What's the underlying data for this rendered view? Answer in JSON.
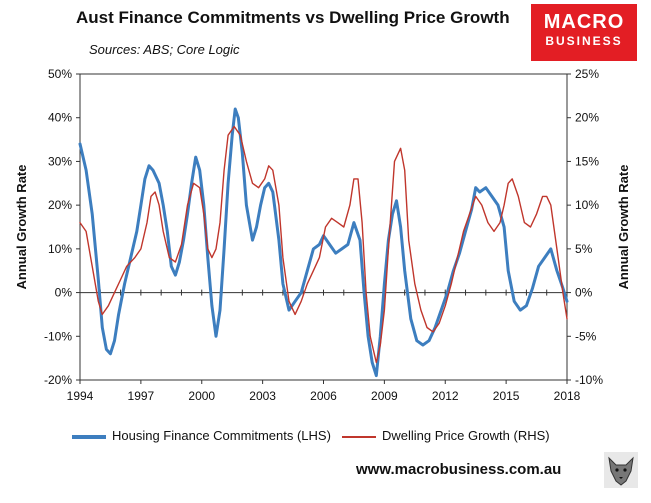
{
  "brand": {
    "line1": "MACRO",
    "line2": "BUSINESS"
  },
  "footer": {
    "url": "www.macrobusiness.com.au"
  },
  "chart_data": {
    "type": "line",
    "title": "Aust Finance Commitments vs Dwelling Price Growth",
    "subtitle": "Sources: ABS; Core Logic",
    "xlabel": "",
    "ylabel_left": "Annual Growth Rate",
    "ylabel_right": "Annual Growth Rate",
    "xlim": [
      1994,
      2018
    ],
    "ylim_left": [
      -20,
      50
    ],
    "ylim_right": [
      -10,
      25
    ],
    "x_ticks": [
      1994,
      1997,
      2000,
      2003,
      2006,
      2009,
      2012,
      2015,
      2018
    ],
    "y_ticks_left": [
      {
        "v": -20,
        "label": "-20%"
      },
      {
        "v": -10,
        "label": "-10%"
      },
      {
        "v": 0,
        "label": "0%"
      },
      {
        "v": 10,
        "label": "10%"
      },
      {
        "v": 20,
        "label": "20%"
      },
      {
        "v": 30,
        "label": "30%"
      },
      {
        "v": 40,
        "label": "40%"
      },
      {
        "v": 50,
        "label": "50%"
      }
    ],
    "y_ticks_right": [
      {
        "v": -10,
        "label": "-10%"
      },
      {
        "v": -5,
        "label": "-5%"
      },
      {
        "v": 0,
        "label": "0%"
      },
      {
        "v": 5,
        "label": "5%"
      },
      {
        "v": 10,
        "label": "10%"
      },
      {
        "v": 15,
        "label": "15%"
      },
      {
        "v": 20,
        "label": "20%"
      },
      {
        "v": 25,
        "label": "25%"
      }
    ],
    "grid": false,
    "legend_position": "bottom",
    "series": [
      {
        "name": "Housing Finance Commitments (LHS)",
        "axis": "left",
        "color": "#3d7ebf",
        "points": [
          [
            1994.0,
            34
          ],
          [
            1994.3,
            28
          ],
          [
            1994.6,
            18
          ],
          [
            1994.9,
            3
          ],
          [
            1995.1,
            -8
          ],
          [
            1995.3,
            -13
          ],
          [
            1995.5,
            -14
          ],
          [
            1995.7,
            -11
          ],
          [
            1995.9,
            -5
          ],
          [
            1996.2,
            2
          ],
          [
            1996.5,
            8
          ],
          [
            1996.8,
            14
          ],
          [
            1997.0,
            20
          ],
          [
            1997.2,
            26
          ],
          [
            1997.4,
            29
          ],
          [
            1997.6,
            28
          ],
          [
            1997.9,
            25
          ],
          [
            1998.1,
            20
          ],
          [
            1998.3,
            14
          ],
          [
            1998.5,
            6
          ],
          [
            1998.7,
            4
          ],
          [
            1998.9,
            7
          ],
          [
            1999.1,
            12
          ],
          [
            1999.3,
            18
          ],
          [
            1999.5,
            25
          ],
          [
            1999.7,
            31
          ],
          [
            1999.9,
            28
          ],
          [
            2000.1,
            20
          ],
          [
            2000.3,
            8
          ],
          [
            2000.5,
            -3
          ],
          [
            2000.7,
            -10
          ],
          [
            2000.9,
            -4
          ],
          [
            2001.1,
            10
          ],
          [
            2001.3,
            25
          ],
          [
            2001.5,
            36
          ],
          [
            2001.65,
            42
          ],
          [
            2001.8,
            40
          ],
          [
            2002.0,
            32
          ],
          [
            2002.2,
            20
          ],
          [
            2002.5,
            12
          ],
          [
            2002.7,
            15
          ],
          [
            2002.9,
            20
          ],
          [
            2003.1,
            24
          ],
          [
            2003.3,
            25
          ],
          [
            2003.5,
            23
          ],
          [
            2003.8,
            12
          ],
          [
            2004.0,
            2
          ],
          [
            2004.3,
            -4
          ],
          [
            2004.6,
            -2
          ],
          [
            2004.9,
            0
          ],
          [
            2005.2,
            5
          ],
          [
            2005.5,
            10
          ],
          [
            2005.8,
            11
          ],
          [
            2006.0,
            13
          ],
          [
            2006.3,
            11
          ],
          [
            2006.6,
            9
          ],
          [
            2006.9,
            10
          ],
          [
            2007.2,
            11
          ],
          [
            2007.5,
            16
          ],
          [
            2007.8,
            12
          ],
          [
            2008.0,
            0
          ],
          [
            2008.2,
            -10
          ],
          [
            2008.4,
            -16
          ],
          [
            2008.6,
            -19
          ],
          [
            2008.8,
            -10
          ],
          [
            2009.0,
            2
          ],
          [
            2009.2,
            12
          ],
          [
            2009.4,
            18
          ],
          [
            2009.6,
            21
          ],
          [
            2009.8,
            15
          ],
          [
            2010.0,
            5
          ],
          [
            2010.3,
            -6
          ],
          [
            2010.6,
            -11
          ],
          [
            2010.9,
            -12
          ],
          [
            2011.2,
            -11
          ],
          [
            2011.5,
            -8
          ],
          [
            2011.8,
            -4
          ],
          [
            2012.1,
            0
          ],
          [
            2012.4,
            5
          ],
          [
            2012.7,
            9
          ],
          [
            2013.0,
            14
          ],
          [
            2013.3,
            19
          ],
          [
            2013.5,
            24
          ],
          [
            2013.7,
            23
          ],
          [
            2014.0,
            24
          ],
          [
            2014.3,
            22
          ],
          [
            2014.6,
            20
          ],
          [
            2014.9,
            15
          ],
          [
            2015.1,
            5
          ],
          [
            2015.4,
            -2
          ],
          [
            2015.7,
            -4
          ],
          [
            2016.0,
            -3
          ],
          [
            2016.3,
            1
          ],
          [
            2016.6,
            6
          ],
          [
            2016.9,
            8
          ],
          [
            2017.2,
            10
          ],
          [
            2017.5,
            5
          ],
          [
            2017.8,
            1
          ],
          [
            2018.0,
            -2
          ]
        ]
      },
      {
        "name": "Dwelling Price Growth (RHS)",
        "axis": "right",
        "color": "#c0362c",
        "points": [
          [
            1994.0,
            8
          ],
          [
            1994.3,
            7
          ],
          [
            1994.6,
            3
          ],
          [
            1994.9,
            -1
          ],
          [
            1995.1,
            -2.5
          ],
          [
            1995.4,
            -1.5
          ],
          [
            1995.7,
            0
          ],
          [
            1996.0,
            1.5
          ],
          [
            1996.3,
            3
          ],
          [
            1996.7,
            4
          ],
          [
            1997.0,
            5
          ],
          [
            1997.3,
            8
          ],
          [
            1997.5,
            11
          ],
          [
            1997.7,
            11.5
          ],
          [
            1997.9,
            10
          ],
          [
            1998.1,
            7
          ],
          [
            1998.4,
            4
          ],
          [
            1998.7,
            3.5
          ],
          [
            1999.0,
            5.5
          ],
          [
            1999.3,
            10
          ],
          [
            1999.6,
            12.5
          ],
          [
            1999.9,
            12
          ],
          [
            2000.1,
            9
          ],
          [
            2000.3,
            5
          ],
          [
            2000.5,
            4
          ],
          [
            2000.7,
            5
          ],
          [
            2000.9,
            8
          ],
          [
            2001.1,
            14
          ],
          [
            2001.3,
            18
          ],
          [
            2001.6,
            19
          ],
          [
            2001.9,
            18
          ],
          [
            2002.2,
            15
          ],
          [
            2002.5,
            12.5
          ],
          [
            2002.8,
            12
          ],
          [
            2003.1,
            13
          ],
          [
            2003.3,
            14.5
          ],
          [
            2003.5,
            14
          ],
          [
            2003.8,
            10
          ],
          [
            2004.0,
            4
          ],
          [
            2004.3,
            -1
          ],
          [
            2004.6,
            -2.5
          ],
          [
            2004.9,
            -1
          ],
          [
            2005.2,
            1
          ],
          [
            2005.5,
            2.5
          ],
          [
            2005.8,
            4
          ],
          [
            2006.1,
            7.5
          ],
          [
            2006.4,
            8.5
          ],
          [
            2006.7,
            8
          ],
          [
            2007.0,
            7.5
          ],
          [
            2007.3,
            10
          ],
          [
            2007.5,
            13
          ],
          [
            2007.7,
            13
          ],
          [
            2007.9,
            8
          ],
          [
            2008.1,
            0
          ],
          [
            2008.3,
            -5
          ],
          [
            2008.6,
            -8
          ],
          [
            2008.8,
            -6
          ],
          [
            2009.0,
            -2
          ],
          [
            2009.2,
            5
          ],
          [
            2009.5,
            15
          ],
          [
            2009.8,
            16.5
          ],
          [
            2010.0,
            14
          ],
          [
            2010.2,
            6
          ],
          [
            2010.5,
            1
          ],
          [
            2010.8,
            -2
          ],
          [
            2011.1,
            -4
          ],
          [
            2011.4,
            -4.5
          ],
          [
            2011.7,
            -3.5
          ],
          [
            2012.0,
            -1.5
          ],
          [
            2012.3,
            1
          ],
          [
            2012.6,
            4
          ],
          [
            2012.9,
            7
          ],
          [
            2013.2,
            9
          ],
          [
            2013.5,
            11
          ],
          [
            2013.8,
            10
          ],
          [
            2014.1,
            8
          ],
          [
            2014.4,
            7
          ],
          [
            2014.7,
            8
          ],
          [
            2014.9,
            10
          ],
          [
            2015.1,
            12.5
          ],
          [
            2015.3,
            13
          ],
          [
            2015.6,
            11
          ],
          [
            2015.9,
            8
          ],
          [
            2016.2,
            7.5
          ],
          [
            2016.5,
            9
          ],
          [
            2016.8,
            11
          ],
          [
            2017.0,
            11
          ],
          [
            2017.2,
            10
          ],
          [
            2017.5,
            5
          ],
          [
            2017.8,
            0
          ],
          [
            2018.0,
            -3
          ]
        ]
      }
    ]
  }
}
